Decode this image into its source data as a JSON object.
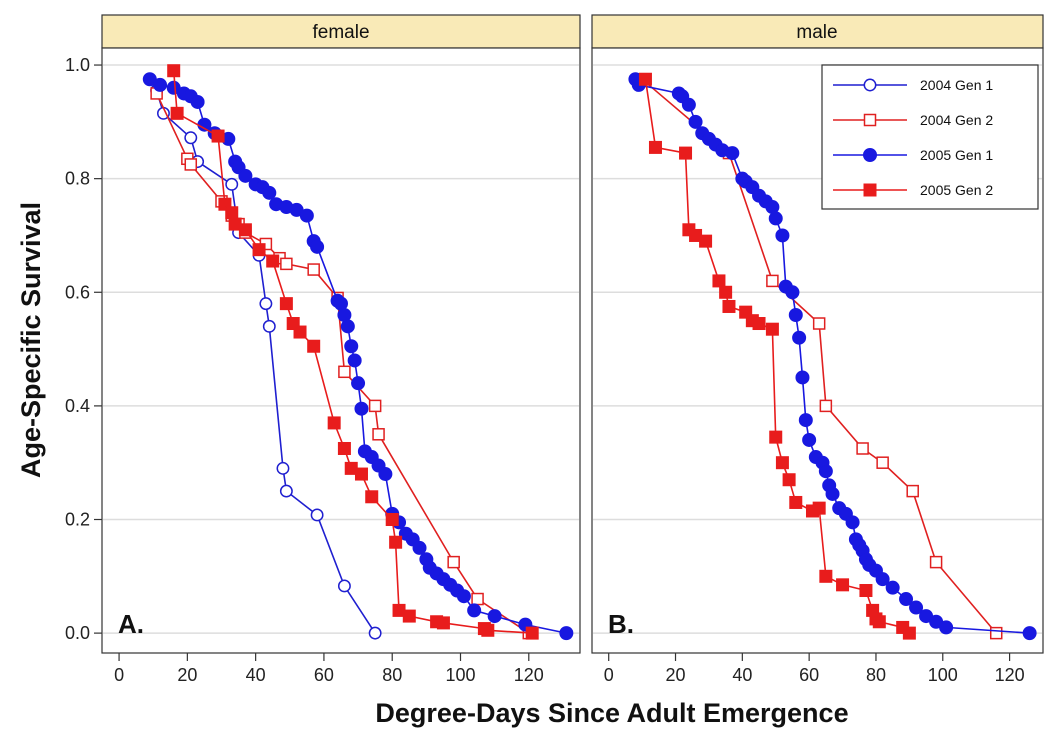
{
  "chart_data": [
    {
      "type": "line",
      "panel_title": "female",
      "panel_letter": "A.",
      "xlim": [
        -5,
        135
      ],
      "ylim": [
        -0.035,
        1.03
      ],
      "xticks": [
        0,
        20,
        40,
        60,
        80,
        100,
        120
      ],
      "yticks": [
        0.0,
        0.2,
        0.4,
        0.6,
        0.8,
        1.0
      ],
      "series": [
        {
          "name": "2004 Gen 1",
          "color": "#1f1fd0",
          "marker": "circle-open",
          "points": [
            [
              11,
              0.955
            ],
            [
              13,
              0.915
            ],
            [
              21,
              0.872
            ],
            [
              23,
              0.83
            ],
            [
              33,
              0.79
            ],
            [
              35,
              0.705
            ],
            [
              41,
              0.665
            ],
            [
              43,
              0.58
            ],
            [
              44,
              0.54
            ],
            [
              48,
              0.29
            ],
            [
              49,
              0.25
            ],
            [
              58,
              0.208
            ],
            [
              66,
              0.083
            ],
            [
              75,
              0.0
            ]
          ]
        },
        {
          "name": "2004 Gen 2",
          "color": "#e02020",
          "marker": "square-open",
          "points": [
            [
              11,
              0.95
            ],
            [
              20,
              0.835
            ],
            [
              21,
              0.825
            ],
            [
              30,
              0.76
            ],
            [
              33,
              0.735
            ],
            [
              35,
              0.72
            ],
            [
              37,
              0.705
            ],
            [
              43,
              0.685
            ],
            [
              47,
              0.66
            ],
            [
              49,
              0.65
            ],
            [
              57,
              0.64
            ],
            [
              64,
              0.59
            ],
            [
              66,
              0.46
            ],
            [
              75,
              0.4
            ],
            [
              76,
              0.35
            ],
            [
              98,
              0.125
            ],
            [
              105,
              0.06
            ],
            [
              120,
              0.0
            ]
          ]
        },
        {
          "name": "2005 Gen 1",
          "color": "#1818e0",
          "marker": "circle-filled",
          "points": [
            [
              9,
              0.975
            ],
            [
              12,
              0.965
            ],
            [
              16,
              0.96
            ],
            [
              19,
              0.95
            ],
            [
              21,
              0.945
            ],
            [
              23,
              0.935
            ],
            [
              25,
              0.895
            ],
            [
              28,
              0.88
            ],
            [
              32,
              0.87
            ],
            [
              34,
              0.83
            ],
            [
              35,
              0.82
            ],
            [
              37,
              0.805
            ],
            [
              40,
              0.79
            ],
            [
              42,
              0.785
            ],
            [
              44,
              0.775
            ],
            [
              46,
              0.755
            ],
            [
              49,
              0.75
            ],
            [
              52,
              0.745
            ],
            [
              55,
              0.735
            ],
            [
              57,
              0.69
            ],
            [
              58,
              0.68
            ],
            [
              64,
              0.585
            ],
            [
              65,
              0.58
            ],
            [
              66,
              0.56
            ],
            [
              67,
              0.54
            ],
            [
              68,
              0.505
            ],
            [
              69,
              0.48
            ],
            [
              70,
              0.44
            ],
            [
              71,
              0.395
            ],
            [
              72,
              0.32
            ],
            [
              74,
              0.31
            ],
            [
              76,
              0.295
            ],
            [
              78,
              0.28
            ],
            [
              80,
              0.21
            ],
            [
              82,
              0.195
            ],
            [
              84,
              0.175
            ],
            [
              86,
              0.165
            ],
            [
              88,
              0.15
            ],
            [
              90,
              0.13
            ],
            [
              91,
              0.115
            ],
            [
              93,
              0.105
            ],
            [
              95,
              0.095
            ],
            [
              97,
              0.085
            ],
            [
              99,
              0.075
            ],
            [
              101,
              0.065
            ],
            [
              104,
              0.04
            ],
            [
              110,
              0.03
            ],
            [
              119,
              0.015
            ],
            [
              131,
              0.0
            ]
          ]
        },
        {
          "name": "2005 Gen 2",
          "color": "#e81c1c",
          "marker": "square-filled",
          "points": [
            [
              16,
              0.99
            ],
            [
              17,
              0.915
            ],
            [
              29,
              0.875
            ],
            [
              31,
              0.755
            ],
            [
              33,
              0.74
            ],
            [
              34,
              0.72
            ],
            [
              37,
              0.71
            ],
            [
              41,
              0.675
            ],
            [
              45,
              0.655
            ],
            [
              49,
              0.58
            ],
            [
              51,
              0.545
            ],
            [
              53,
              0.53
            ],
            [
              57,
              0.505
            ],
            [
              63,
              0.37
            ],
            [
              66,
              0.325
            ],
            [
              68,
              0.29
            ],
            [
              71,
              0.28
            ],
            [
              74,
              0.24
            ],
            [
              80,
              0.2
            ],
            [
              81,
              0.16
            ],
            [
              82,
              0.04
            ],
            [
              85,
              0.03
            ],
            [
              93,
              0.02
            ],
            [
              95,
              0.018
            ],
            [
              107,
              0.008
            ],
            [
              108,
              0.005
            ],
            [
              121,
              0.0
            ]
          ]
        }
      ]
    },
    {
      "type": "line",
      "panel_title": "male",
      "panel_letter": "B.",
      "xlim": [
        -5,
        130
      ],
      "ylim": [
        -0.035,
        1.03
      ],
      "xticks": [
        0,
        20,
        40,
        60,
        80,
        100,
        120
      ],
      "yticks": [
        0.0,
        0.2,
        0.4,
        0.6,
        0.8,
        1.0
      ],
      "series": [
        {
          "name": "2004 Gen 1",
          "color": "#1f1fd0",
          "marker": "circle-open",
          "points": []
        },
        {
          "name": "2004 Gen 2",
          "color": "#e02020",
          "marker": "square-open",
          "points": [
            [
              10,
              0.975
            ],
            [
              36,
              0.845
            ],
            [
              49,
              0.62
            ],
            [
              63,
              0.545
            ],
            [
              65,
              0.4
            ],
            [
              76,
              0.325
            ],
            [
              82,
              0.3
            ],
            [
              91,
              0.25
            ],
            [
              98,
              0.125
            ],
            [
              116,
              0.0
            ]
          ]
        },
        {
          "name": "2005 Gen 1",
          "color": "#1818e0",
          "marker": "circle-filled",
          "points": [
            [
              8,
              0.975
            ],
            [
              9,
              0.965
            ],
            [
              21,
              0.95
            ],
            [
              22,
              0.945
            ],
            [
              24,
              0.93
            ],
            [
              26,
              0.9
            ],
            [
              28,
              0.88
            ],
            [
              30,
              0.87
            ],
            [
              32,
              0.86
            ],
            [
              34,
              0.85
            ],
            [
              37,
              0.845
            ],
            [
              40,
              0.8
            ],
            [
              41,
              0.795
            ],
            [
              43,
              0.785
            ],
            [
              45,
              0.77
            ],
            [
              47,
              0.76
            ],
            [
              49,
              0.75
            ],
            [
              50,
              0.73
            ],
            [
              52,
              0.7
            ],
            [
              53,
              0.61
            ],
            [
              55,
              0.6
            ],
            [
              56,
              0.56
            ],
            [
              57,
              0.52
            ],
            [
              58,
              0.45
            ],
            [
              59,
              0.375
            ],
            [
              60,
              0.34
            ],
            [
              62,
              0.31
            ],
            [
              64,
              0.3
            ],
            [
              65,
              0.285
            ],
            [
              66,
              0.26
            ],
            [
              67,
              0.245
            ],
            [
              69,
              0.22
            ],
            [
              71,
              0.21
            ],
            [
              73,
              0.195
            ],
            [
              74,
              0.165
            ],
            [
              75,
              0.155
            ],
            [
              76,
              0.145
            ],
            [
              77,
              0.13
            ],
            [
              78,
              0.12
            ],
            [
              80,
              0.11
            ],
            [
              82,
              0.095
            ],
            [
              85,
              0.08
            ],
            [
              89,
              0.06
            ],
            [
              92,
              0.045
            ],
            [
              95,
              0.03
            ],
            [
              98,
              0.02
            ],
            [
              101,
              0.01
            ],
            [
              126,
              0.0
            ]
          ]
        },
        {
          "name": "2005 Gen 2",
          "color": "#e81c1c",
          "marker": "square-filled",
          "points": [
            [
              11,
              0.975
            ],
            [
              14,
              0.855
            ],
            [
              23,
              0.845
            ],
            [
              24,
              0.71
            ],
            [
              26,
              0.7
            ],
            [
              29,
              0.69
            ],
            [
              33,
              0.62
            ],
            [
              35,
              0.6
            ],
            [
              36,
              0.575
            ],
            [
              41,
              0.565
            ],
            [
              43,
              0.55
            ],
            [
              45,
              0.545
            ],
            [
              49,
              0.535
            ],
            [
              50,
              0.345
            ],
            [
              52,
              0.3
            ],
            [
              54,
              0.27
            ],
            [
              56,
              0.23
            ],
            [
              61,
              0.215
            ],
            [
              63,
              0.22
            ],
            [
              65,
              0.1
            ],
            [
              70,
              0.085
            ],
            [
              77,
              0.075
            ],
            [
              79,
              0.04
            ],
            [
              80,
              0.025
            ],
            [
              81,
              0.02
            ],
            [
              88,
              0.01
            ],
            [
              90,
              0.0
            ]
          ]
        }
      ]
    }
  ],
  "axes": {
    "ylabel": "Age-Specific Survival",
    "xlabel": "Degree-Days Since Adult Emergence"
  },
  "legend": {
    "placement": "top-right of male panel",
    "entries": [
      {
        "label": "2004 Gen 1",
        "color": "#1f1fd0",
        "marker": "circle-open"
      },
      {
        "label": "2004 Gen 2",
        "color": "#e02020",
        "marker": "square-open"
      },
      {
        "label": "2005 Gen 1",
        "color": "#1818e0",
        "marker": "circle-filled"
      },
      {
        "label": "2005 Gen 2",
        "color": "#e81c1c",
        "marker": "square-filled"
      }
    ]
  },
  "style": {
    "strip_color": "#f9eab7",
    "grid": true
  }
}
